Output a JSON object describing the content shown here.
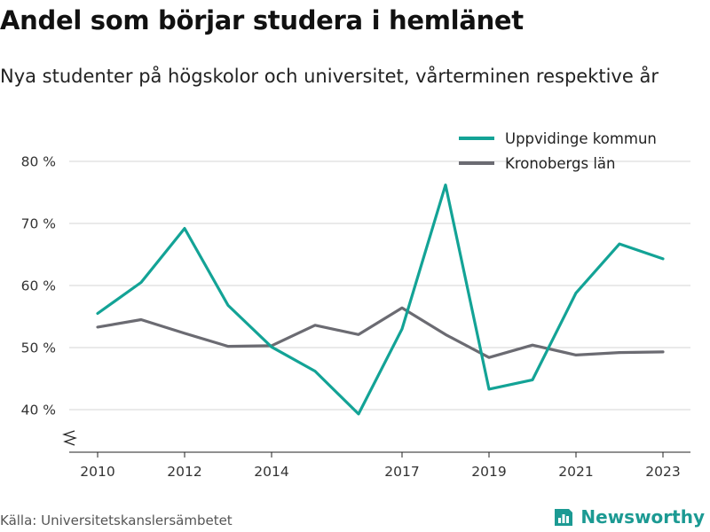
{
  "title": "Andel som börjar studera i hemlänet",
  "subtitle": "Nya studenter på högskolor och universitet, vårterminen respektive år",
  "source": "Källa: Universitetskanslersämbetet",
  "brand": {
    "name": "Newsworthy",
    "icon": "newsworthy-logo-icon",
    "color": "#1c9a93"
  },
  "chart_data": {
    "type": "line",
    "x": [
      2010,
      2011,
      2012,
      2013,
      2014,
      2015,
      2016,
      2017,
      2018,
      2019,
      2020,
      2021,
      2022,
      2023
    ],
    "x_ticks": [
      {
        "value": 2010,
        "label": "2010"
      },
      {
        "value": 2012,
        "label": "2012"
      },
      {
        "value": 2014,
        "label": "2014"
      },
      {
        "value": 2017,
        "label": "2017"
      },
      {
        "value": 2019,
        "label": "2019"
      },
      {
        "value": 2021,
        "label": "2021"
      },
      {
        "value": 2023,
        "label": "2023"
      }
    ],
    "y_ticks": [
      {
        "value": 40,
        "label": "40 %"
      },
      {
        "value": 50,
        "label": "50 %"
      },
      {
        "value": 60,
        "label": "60 %"
      },
      {
        "value": 70,
        "label": "70 %"
      },
      {
        "value": 80,
        "label": "80 %"
      }
    ],
    "ylim": [
      33,
      82
    ],
    "xlim": [
      2009.4,
      2023.6
    ],
    "grid": true,
    "axis_break": true,
    "legend_position": "top-right",
    "series": [
      {
        "name": "Uppvidinge kommun",
        "color": "#13a396",
        "values": [
          55.5,
          60.5,
          69.2,
          56.8,
          50.1,
          46.2,
          39.3,
          53.0,
          76.2,
          43.3,
          44.8,
          58.8,
          66.7,
          64.3
        ]
      },
      {
        "name": "Kronobergs län",
        "color": "#6b6b72",
        "values": [
          53.3,
          54.5,
          52.3,
          50.2,
          50.3,
          53.6,
          52.1,
          56.4,
          52.1,
          48.4,
          50.4,
          48.8,
          49.2,
          49.3
        ]
      }
    ]
  }
}
